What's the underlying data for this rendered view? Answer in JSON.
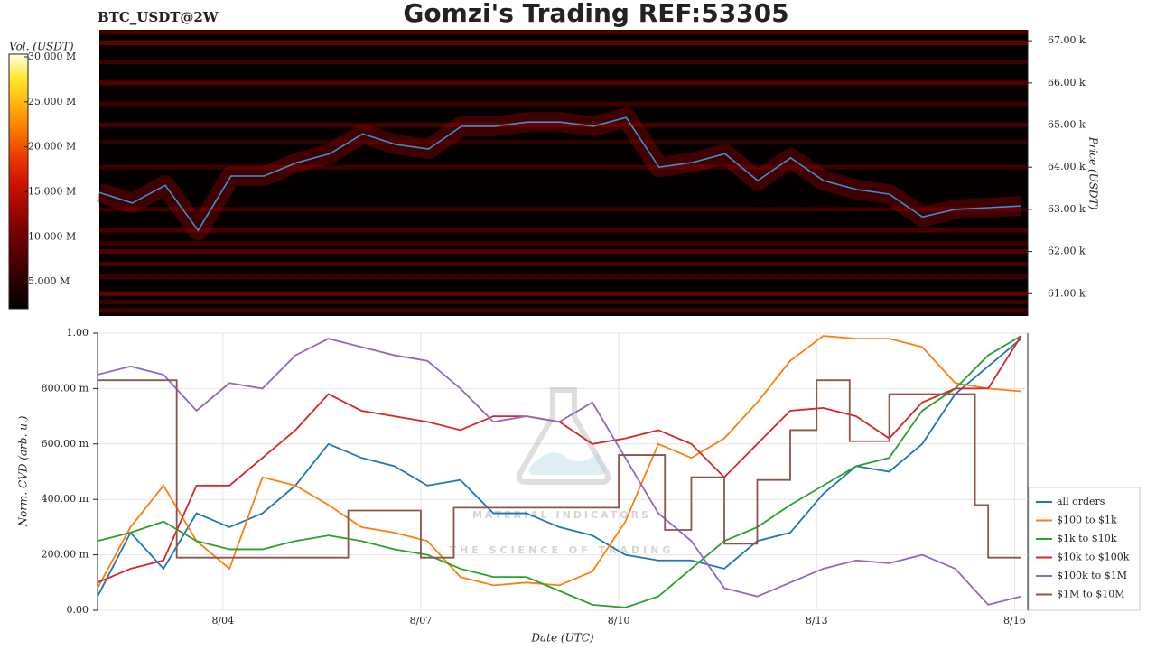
{
  "chart_data": [
    {
      "type": "heatmap",
      "title": "Gomzi's Trading REF:53305",
      "subtitle": "BTC_USDT@2W",
      "y_label": "Price (USDT)",
      "colorbar_label": "Vol. (USDT)",
      "xlim": [
        2.1,
        16.2
      ],
      "ylim": [
        60.47,
        67.26
      ],
      "yticks": [
        {
          "value": 61,
          "label": "61.00 k"
        },
        {
          "value": 62,
          "label": "62.00 k"
        },
        {
          "value": 63,
          "label": "63.00 k"
        },
        {
          "value": 64,
          "label": "64.00 k"
        },
        {
          "value": 65,
          "label": "65.00 k"
        },
        {
          "value": 66,
          "label": "66.00 k"
        },
        {
          "value": 67,
          "label": "67.00 k"
        }
      ],
      "clim": [
        2,
        30.3
      ],
      "cticks": [
        {
          "value": 5,
          "label": "5.000 M"
        },
        {
          "value": 10,
          "label": "10.000 M"
        },
        {
          "value": 15,
          "label": "15.000 M"
        },
        {
          "value": 20,
          "label": "20.000 M"
        },
        {
          "value": 25,
          "label": "25.000 M"
        },
        {
          "value": 30,
          "label": "30.000 M"
        }
      ],
      "levels": [
        67.2,
        66.95,
        66.5,
        66.0,
        65.5,
        65.0,
        64.6,
        64.0,
        63.0,
        62.5,
        62.2,
        62.0,
        61.7,
        61.4,
        61.0,
        60.8,
        60.6
      ],
      "volumes": [
        7,
        9,
        6,
        8,
        6,
        7,
        5,
        6,
        6,
        7,
        6,
        8,
        7,
        6,
        9,
        6,
        7
      ],
      "price": {
        "color": "#3d8fd1",
        "x": [
          2.1,
          2.6,
          3.1,
          3.6,
          4.1,
          4.6,
          5.1,
          5.6,
          6.1,
          6.6,
          7.1,
          7.6,
          8.1,
          8.6,
          9.1,
          9.6,
          10.1,
          10.6,
          11.1,
          11.6,
          12.1,
          12.6,
          13.1,
          13.6,
          14.1,
          14.6,
          15.1,
          15.6,
          16.1
        ],
        "values": [
          63.4,
          63.15,
          63.57,
          62.5,
          63.79,
          63.79,
          64.11,
          64.32,
          64.79,
          64.54,
          64.43,
          64.97,
          64.97,
          65.07,
          65.07,
          64.97,
          65.18,
          64.0,
          64.11,
          64.32,
          63.68,
          64.22,
          63.68,
          63.47,
          63.36,
          62.82,
          63.0,
          63.04,
          63.08
        ]
      }
    },
    {
      "type": "line",
      "x_label": "Date (UTC)",
      "y_label": "Norm. CVD (arb. u.)",
      "watermark": "MATERIAL INDICATORS",
      "watermark_sub": "THE SCIENCE OF TRADING",
      "xlim": [
        2.1,
        16.2
      ],
      "ylim": [
        0,
        1.0
      ],
      "xticks": [
        {
          "value": 4,
          "label": "8/04"
        },
        {
          "value": 7,
          "label": "8/07"
        },
        {
          "value": 10,
          "label": "8/10"
        },
        {
          "value": 13,
          "label": "8/13"
        },
        {
          "value": 16,
          "label": "8/16"
        }
      ],
      "yticks": [
        {
          "value": 0,
          "label": "0.00"
        },
        {
          "value": 0.2,
          "label": "200.00 m"
        },
        {
          "value": 0.4,
          "label": "400.00 m"
        },
        {
          "value": 0.6,
          "label": "600.00 m"
        },
        {
          "value": 0.8,
          "label": "800.00 m"
        },
        {
          "value": 1.0,
          "label": "1.00"
        }
      ],
      "grid": true,
      "x": [
        2.1,
        2.6,
        3.1,
        3.6,
        4.1,
        4.6,
        5.1,
        5.6,
        6.1,
        6.6,
        7.1,
        7.6,
        8.1,
        8.6,
        9.1,
        9.6,
        10.1,
        10.6,
        11.1,
        11.6,
        12.1,
        12.6,
        13.1,
        13.6,
        14.1,
        14.6,
        15.1,
        15.6,
        16.1
      ],
      "series": [
        {
          "name": "all orders",
          "color": "#1f77b4",
          "values": [
            0.05,
            0.28,
            0.15,
            0.35,
            0.3,
            0.35,
            0.45,
            0.6,
            0.55,
            0.52,
            0.45,
            0.47,
            0.35,
            0.35,
            0.3,
            0.27,
            0.2,
            0.18,
            0.18,
            0.15,
            0.25,
            0.28,
            0.42,
            0.52,
            0.5,
            0.6,
            0.78,
            0.88,
            0.98
          ]
        },
        {
          "name": "$100 to $1k",
          "color": "#ff7f0e",
          "values": [
            0.08,
            0.3,
            0.45,
            0.25,
            0.15,
            0.48,
            0.45,
            0.38,
            0.3,
            0.28,
            0.25,
            0.12,
            0.09,
            0.1,
            0.09,
            0.14,
            0.32,
            0.6,
            0.55,
            0.62,
            0.75,
            0.9,
            0.99,
            0.98,
            0.98,
            0.95,
            0.82,
            0.8,
            0.79
          ]
        },
        {
          "name": "$1k to $10k",
          "color": "#2ca02c",
          "values": [
            0.25,
            0.28,
            0.32,
            0.25,
            0.22,
            0.22,
            0.25,
            0.27,
            0.25,
            0.22,
            0.2,
            0.15,
            0.12,
            0.12,
            0.07,
            0.02,
            0.01,
            0.05,
            0.15,
            0.25,
            0.3,
            0.38,
            0.45,
            0.52,
            0.55,
            0.72,
            0.8,
            0.92,
            0.99
          ]
        },
        {
          "name": "$10k to $100k",
          "color": "#d62728",
          "values": [
            0.1,
            0.15,
            0.18,
            0.45,
            0.45,
            0.55,
            0.65,
            0.78,
            0.72,
            0.7,
            0.68,
            0.65,
            0.7,
            0.7,
            0.68,
            0.6,
            0.62,
            0.65,
            0.6,
            0.48,
            0.6,
            0.72,
            0.73,
            0.7,
            0.62,
            0.75,
            0.8,
            0.8,
            0.99
          ]
        },
        {
          "name": "$100k to $1M",
          "color": "#9467bd",
          "values": [
            0.85,
            0.88,
            0.85,
            0.72,
            0.82,
            0.8,
            0.92,
            0.98,
            0.95,
            0.92,
            0.9,
            0.8,
            0.68,
            0.7,
            0.68,
            0.75,
            0.55,
            0.35,
            0.25,
            0.08,
            0.05,
            0.1,
            0.15,
            0.18,
            0.17,
            0.2,
            0.15,
            0.02,
            0.05
          ]
        },
        {
          "name": "$1M to $10M",
          "color": "#8c564b",
          "step": true,
          "x": [
            2.1,
            3.3,
            5.9,
            7.0,
            7.5,
            10.0,
            10.7,
            11.1,
            11.6,
            12.1,
            12.6,
            13.0,
            13.5,
            14.1,
            15.1,
            15.4,
            15.6,
            16.1
          ],
          "values": [
            0.83,
            0.19,
            0.36,
            0.19,
            0.37,
            0.56,
            0.29,
            0.48,
            0.24,
            0.47,
            0.65,
            0.83,
            0.61,
            0.78,
            0.78,
            0.38,
            0.19,
            0.19
          ]
        }
      ]
    }
  ]
}
